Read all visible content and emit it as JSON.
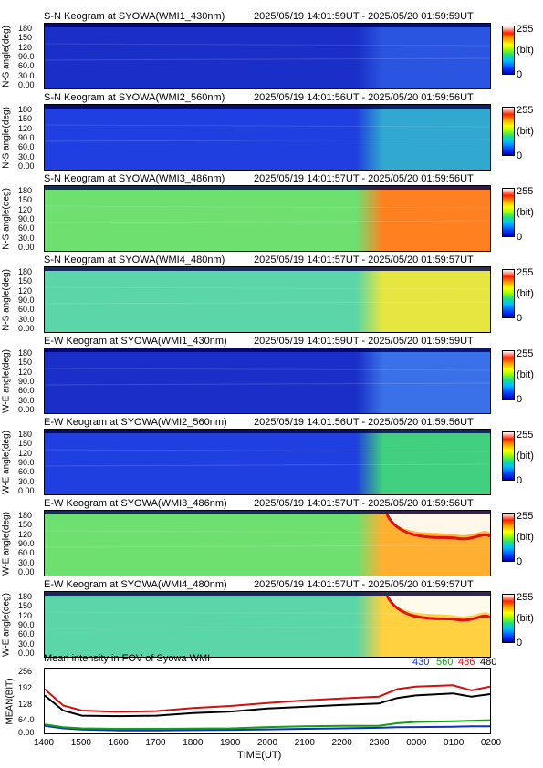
{
  "keograms": [
    {
      "title": "S-N Keogram at SYOWA(WMI1_430nm)",
      "time": "2025/05/19 14:01:59UT - 2025/05/20 01:59:59UT",
      "ylabel": "N-S angle(deg)",
      "base": "#1a2fc8",
      "late": "#2a55e0",
      "level": 0.12,
      "lateLevel": 0.2,
      "arc": false
    },
    {
      "title": "S-N Keogram at SYOWA(WMI2_560nm)",
      "time": "2025/05/19 14:01:56UT - 2025/05/20 01:59:56UT",
      "ylabel": "N-S angle(deg)",
      "base": "#1f3fe0",
      "late": "#30a8d0",
      "level": 0.15,
      "lateLevel": 0.35,
      "arc": false
    },
    {
      "title": "S-N Keogram at SYOWA(WMI3_486nm)",
      "time": "2025/05/19 14:01:57UT - 2025/05/20 01:59:56UT",
      "ylabel": "N-S angle(deg)",
      "base": "#6ee070",
      "late": "#ff8020",
      "level": 0.45,
      "lateLevel": 0.8,
      "arc": false
    },
    {
      "title": "S-N Keogram at SYOWA(WMI4_480nm)",
      "time": "2025/05/19 14:01:57UT - 2025/05/20 01:59:57UT",
      "ylabel": "N-S angle(deg)",
      "base": "#5ad6a8",
      "late": "#e6e640",
      "level": 0.4,
      "lateLevel": 0.65,
      "arc": false
    },
    {
      "title": "E-W Keogram at SYOWA(WMI1_430nm)",
      "time": "2025/05/19 14:01:59UT - 2025/05/20 01:59:59UT",
      "ylabel": "W-E angle(deg)",
      "base": "#1a2fc8",
      "late": "#3a70e8",
      "level": 0.12,
      "lateLevel": 0.22,
      "arc": false
    },
    {
      "title": "E-W Keogram at SYOWA(WMI2_560nm)",
      "time": "2025/05/19 14:01:56UT - 2025/05/20 01:59:56UT",
      "ylabel": "W-E angle(deg)",
      "base": "#1f3fe0",
      "late": "#40d080",
      "level": 0.15,
      "lateLevel": 0.45,
      "arc": false
    },
    {
      "title": "E-W Keogram at SYOWA(WMI3_486nm)",
      "time": "2025/05/19 14:01:57UT - 2025/05/20 01:59:56UT",
      "ylabel": "W-E angle(deg)",
      "base": "#6ee070",
      "late": "#ffb030",
      "level": 0.45,
      "lateLevel": 0.85,
      "arc": true
    },
    {
      "title": "E-W Keogram at SYOWA(WMI4_480nm)",
      "time": "2025/05/19 14:01:57UT - 2025/05/20 01:59:57UT",
      "ylabel": "W-E angle(deg)",
      "base": "#5ad6a8",
      "late": "#ffd040",
      "level": 0.4,
      "lateLevel": 0.8,
      "arc": true
    }
  ],
  "yticks": [
    "180",
    "150",
    "120",
    "90.0",
    "60.0",
    "30.0",
    "0.00"
  ],
  "colorbar": {
    "max": "255",
    "unit": "(bit)",
    "min": "0"
  },
  "mean": {
    "title": "Mean intensity in FOV of Syowa WMI",
    "legend": [
      {
        "label": "430",
        "color": "#1030c0"
      },
      {
        "label": "560",
        "color": "#10a010"
      },
      {
        "label": "486",
        "color": "#d01010"
      },
      {
        "label": "480",
        "color": "#000000"
      }
    ],
    "ylabel": "MEAN(BIT)",
    "yticks": [
      "256",
      "192",
      "128",
      "64.0",
      "0.00"
    ],
    "xticks": [
      "1400",
      "1500",
      "1600",
      "1700",
      "1800",
      "1900",
      "2000",
      "2100",
      "2200",
      "2300",
      "0000",
      "0100",
      "0200"
    ],
    "xlabel": "TIME(UT)"
  },
  "chart_data": {
    "type": "line",
    "title": "Mean intensity in FOV of Syowa WMI",
    "xlabel": "TIME(UT)",
    "ylabel": "MEAN(BIT)",
    "ylim": [
      0,
      256
    ],
    "x": [
      "1400",
      "1430",
      "1500",
      "1600",
      "1700",
      "1800",
      "1900",
      "2000",
      "2100",
      "2200",
      "2300",
      "2330",
      "0000",
      "0100",
      "0130",
      "0200"
    ],
    "series": [
      {
        "name": "430",
        "color": "#1030c0",
        "values": [
          30,
          20,
          15,
          12,
          12,
          13,
          14,
          16,
          18,
          20,
          22,
          24,
          25,
          26,
          28,
          28
        ]
      },
      {
        "name": "560",
        "color": "#10a010",
        "values": [
          35,
          24,
          20,
          18,
          18,
          19,
          20,
          25,
          28,
          30,
          30,
          40,
          45,
          48,
          50,
          52
        ]
      },
      {
        "name": "486",
        "color": "#d01010",
        "values": [
          175,
          110,
          90,
          85,
          88,
          100,
          108,
          120,
          130,
          138,
          145,
          175,
          185,
          190,
          170,
          185
        ]
      },
      {
        "name": "480",
        "color": "#000000",
        "values": [
          150,
          90,
          70,
          68,
          70,
          80,
          86,
          98,
          105,
          112,
          118,
          140,
          150,
          158,
          145,
          155
        ]
      }
    ]
  }
}
